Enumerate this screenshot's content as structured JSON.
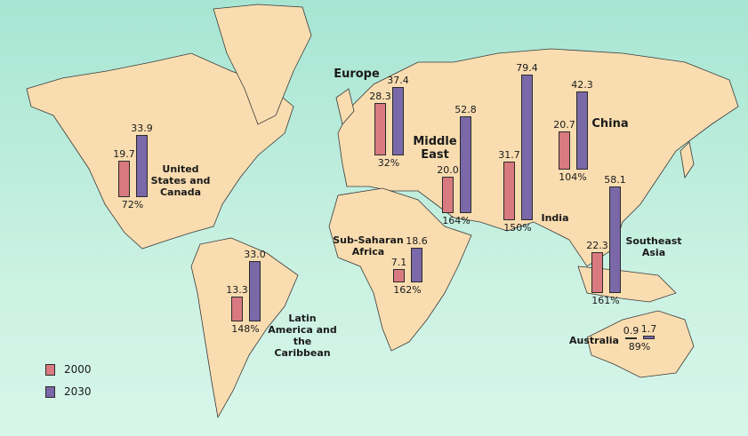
{
  "map_data": {
    "series": [
      {
        "name": "2000",
        "color": "#d97a80"
      },
      {
        "name": "2030",
        "color": "#7a68a8"
      }
    ],
    "regions": [
      {
        "name": "United States and Canada",
        "values": [
          19.7,
          33.9
        ],
        "change": "72%"
      },
      {
        "name": "Europe",
        "values": [
          28.3,
          37.4
        ],
        "change": "32%"
      },
      {
        "name": "Middle East",
        "values": [
          20.0,
          52.8
        ],
        "value_labels": [
          "20.0",
          "52.8"
        ],
        "change": "164%"
      },
      {
        "name": "India",
        "values": [
          31.7,
          79.4
        ],
        "change": "150%"
      },
      {
        "name": "China",
        "values": [
          20.7,
          42.3
        ],
        "change": "104%"
      },
      {
        "name": "Southeast Asia",
        "values": [
          22.3,
          58.1
        ],
        "change": "161%"
      },
      {
        "name": "Sub-Saharan Africa",
        "values": [
          7.1,
          18.6
        ],
        "change": "162%"
      },
      {
        "name": "Latin America and the Caribbean",
        "values": [
          13.3,
          33.0
        ],
        "value_labels": [
          "13.3",
          "33.0"
        ],
        "change": "148%"
      },
      {
        "name": "Australia",
        "values": [
          0.9,
          1.7
        ],
        "change": "89%"
      }
    ]
  }
}
